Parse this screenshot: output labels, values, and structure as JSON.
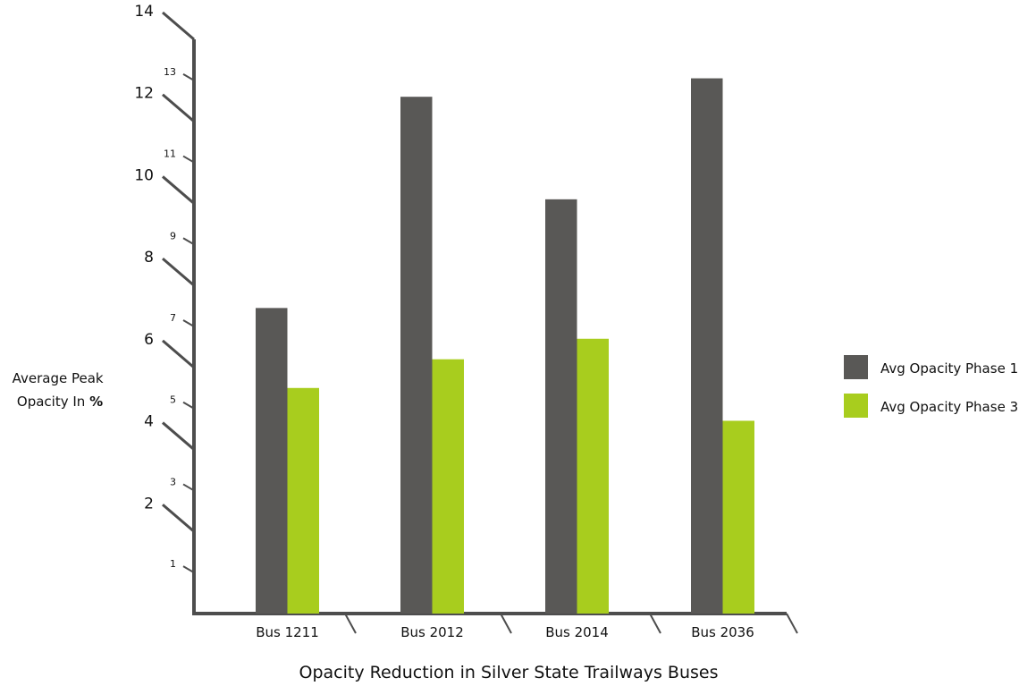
{
  "chart_data": {
    "type": "bar",
    "title": "Opacity Reduction in Silver State Trailways Buses",
    "xlabel": "",
    "ylabel": {
      "line1": "Average Peak",
      "line2_prefix": "Opacity In ",
      "line2_unit": "%"
    },
    "categories": [
      "Bus 1211",
      "Bus 2012",
      "Bus 2014",
      "Bus 2036"
    ],
    "series": [
      {
        "name": "Avg Opacity Phase 1",
        "color": "#595856",
        "values": [
          7.45,
          12.6,
          10.1,
          13.05
        ]
      },
      {
        "name": "Avg Opacity Phase 3",
        "color": "#a8cd1e",
        "values": [
          5.5,
          6.2,
          6.7,
          4.7
        ]
      }
    ],
    "ylim": [
      0,
      14
    ],
    "yticks_major": [
      "2",
      "4",
      "6",
      "8",
      "10",
      "12",
      "14"
    ],
    "yticks_minor": [
      "1",
      "3",
      "5",
      "7",
      "9",
      "11",
      "13"
    ],
    "grid": false,
    "legend_position": "right"
  }
}
